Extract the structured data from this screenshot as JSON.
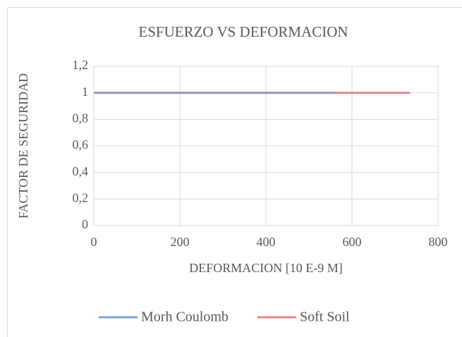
{
  "chart_data": {
    "type": "line",
    "title": "ESFUERZO VS DEFORMACION",
    "x_label": "DEFORMACION  [10 E-9 M]",
    "y_label": "FACTOR DE SEGURIDAD",
    "series": [
      {
        "name": "Morh Coulomb",
        "color": "#7fa3cf",
        "x": [
          0,
          560
        ],
        "values": [
          1,
          1
        ]
      },
      {
        "name": "Soft Soil",
        "color": "#e08a8a",
        "x": [
          0,
          735
        ],
        "values": [
          1,
          1
        ]
      }
    ],
    "xlim": [
      0,
      800
    ],
    "xticks": [
      0,
      200,
      400,
      600,
      800
    ],
    "ylim": [
      0,
      1.2
    ],
    "yticks": [
      0,
      {
        "value": 0.2,
        "label": "0,2"
      },
      {
        "value": 0.4,
        "label": "0,4"
      },
      {
        "value": 0.6,
        "label": "0,6"
      },
      {
        "value": 0.8,
        "label": "0,8"
      },
      1,
      {
        "value": 1.2,
        "label": "1,2"
      }
    ],
    "grid": true,
    "legend": "bottom"
  }
}
